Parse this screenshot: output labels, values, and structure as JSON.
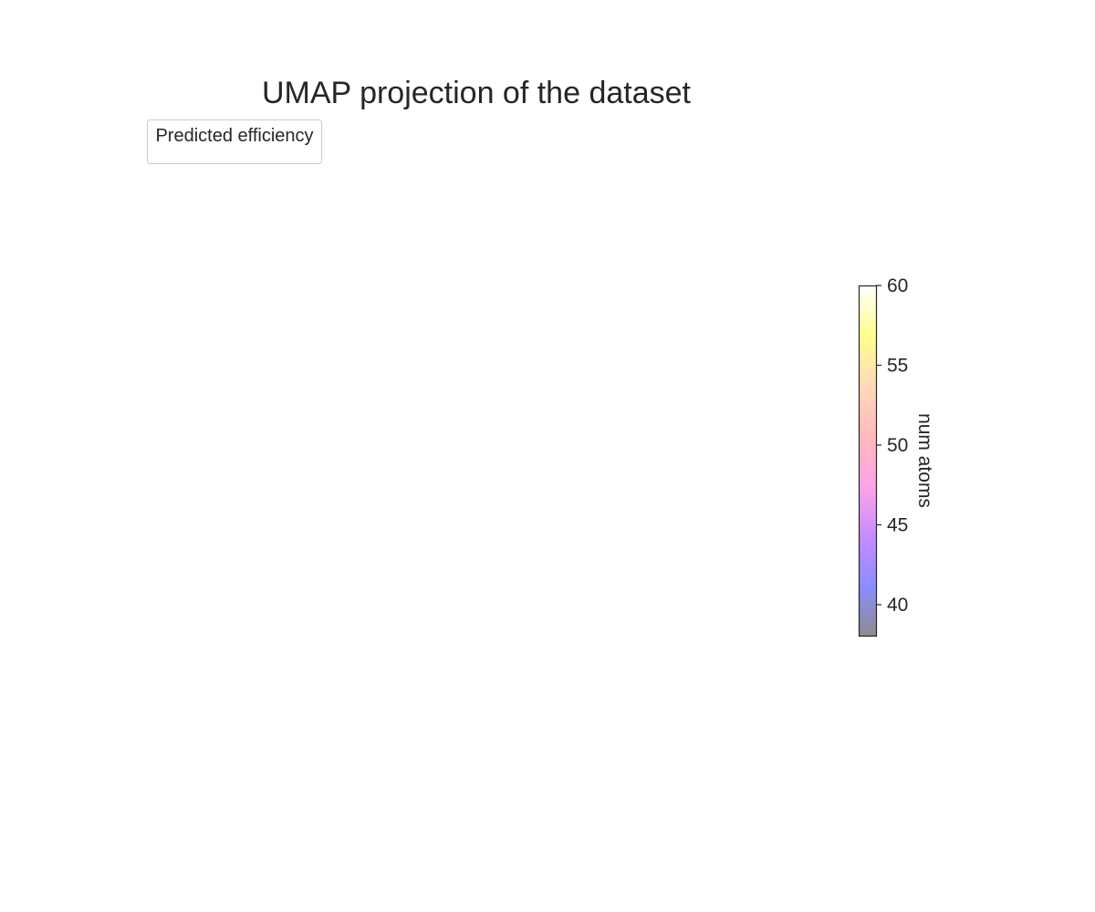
{
  "chart_data": {
    "type": "scatter",
    "title": "UMAP projection of the dataset",
    "legend": {
      "title": "Predicted efficiency",
      "entries": [],
      "placement": "upper-left"
    },
    "series": [],
    "grid": false,
    "axes_visible": false,
    "colorbar": {
      "label": "num atoms",
      "range": [
        38,
        60
      ],
      "ticks": [
        40,
        45,
        50,
        55,
        60
      ],
      "tick_labels": [
        "40",
        "45",
        "50",
        "55",
        "60"
      ],
      "colormap": [
        "#000000",
        "#0000ff",
        "#8000ff",
        "#ff33cc",
        "#ff6666",
        "#ffaa66",
        "#ffff00",
        "#ffffff"
      ],
      "alpha": 0.45
    }
  }
}
